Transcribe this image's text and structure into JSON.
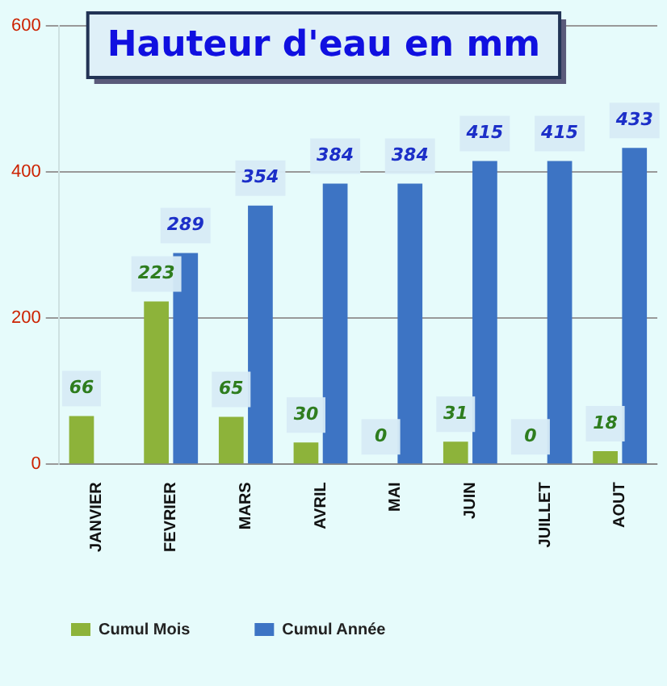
{
  "chart_data": {
    "type": "bar",
    "title": "Hauteur d'eau en mm",
    "categories": [
      "JANVIER",
      "FEVRIER",
      "MARS",
      "AVRIL",
      "MAI",
      "JUIN",
      "JUILLET",
      "AOUT"
    ],
    "series": [
      {
        "name": "Cumul Mois",
        "color": "#8db33a",
        "values": [
          66,
          223,
          65,
          30,
          0,
          31,
          0,
          18
        ]
      },
      {
        "name": "Cumul Année",
        "color": "#3d74c4",
        "values": [
          null,
          289,
          354,
          384,
          384,
          415,
          415,
          433
        ]
      }
    ],
    "ylim": [
      0,
      600
    ],
    "yticks": [
      0,
      200,
      400,
      600
    ],
    "grid": "y",
    "legend": "bottom",
    "data_labels": true
  }
}
